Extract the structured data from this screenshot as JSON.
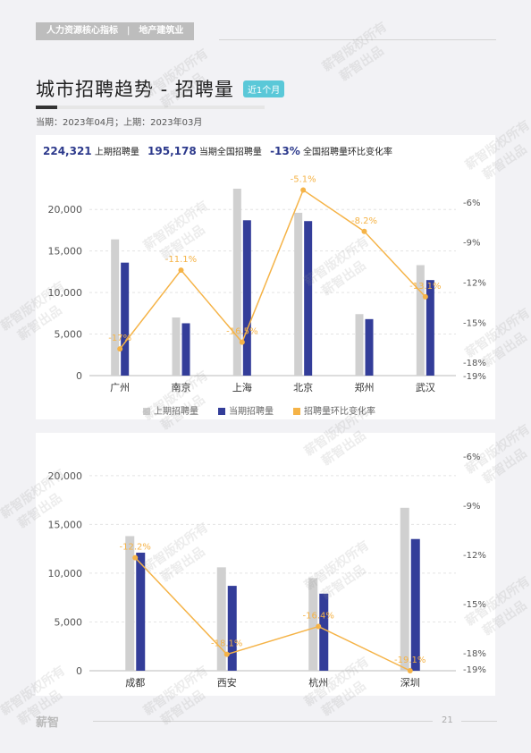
{
  "header": {
    "crumb_left": "人力资源核心指标",
    "crumb_sep": "|",
    "crumb_right": "地产建筑业"
  },
  "title": {
    "text": "城市招聘趋势 - 招聘量",
    "tag": "近1个月",
    "subtitle": "当期：2023年04月；上期：2023年03月"
  },
  "stats": {
    "prev_value": "224,321",
    "prev_label": "上期招聘量",
    "curr_value": "195,178",
    "curr_label": "当期全国招聘量",
    "change_value": "-13%",
    "change_label": "全国招聘量环比变化率"
  },
  "legend": {
    "prev": "上期招聘量",
    "curr": "当期招聘量",
    "rate": "招聘量环比变化率"
  },
  "colors": {
    "prev_bar": "#d0d0d0",
    "curr_bar": "#333d99",
    "rate_line": "#f5b347",
    "tag_bg": "#5ac8d8"
  },
  "chart_data": [
    {
      "type": "bar",
      "categories": [
        "广州",
        "南京",
        "上海",
        "北京",
        "郑州",
        "武汉"
      ],
      "series": [
        {
          "name": "上期招聘量",
          "values": [
            16400,
            7000,
            22500,
            19600,
            7400,
            13300
          ]
        },
        {
          "name": "当期招聘量",
          "values": [
            13600,
            6300,
            18700,
            18600,
            6800,
            11500
          ]
        },
        {
          "name": "招聘量环比变化率",
          "axis": "right",
          "values": [
            -17.0,
            -11.1,
            -16.5,
            -5.1,
            -8.2,
            -13.1
          ],
          "labels": [
            "-17%",
            "-11.1%",
            "-16.5%",
            "-5.1%",
            "-8.2%",
            "-13.1%"
          ]
        }
      ],
      "ylim": [
        0,
        22500
      ],
      "yticks": [
        "0",
        "5,000",
        "10,000",
        "15,000",
        "20,000"
      ],
      "y2lim": [
        -19,
        -5
      ],
      "y2ticks": [
        "-6%",
        "-9%",
        "-12%",
        "-15%",
        "-18%",
        "-19%"
      ],
      "grid": true,
      "legend_position": "bottom"
    },
    {
      "type": "bar",
      "categories": [
        "成都",
        "西安",
        "杭州",
        "深圳"
      ],
      "series": [
        {
          "name": "上期招聘量",
          "values": [
            13800,
            10600,
            9500,
            16700
          ]
        },
        {
          "name": "当期招聘量",
          "values": [
            12100,
            8700,
            7900,
            13500
          ]
        },
        {
          "name": "招聘量环比变化率",
          "axis": "right",
          "values": [
            -12.2,
            -18.1,
            -16.4,
            -19.1
          ],
          "labels": [
            "-12.2%",
            "-18.1%",
            "-16.4%",
            "-19.1%"
          ]
        }
      ],
      "ylim": [
        0,
        22000
      ],
      "yticks": [
        "0",
        "5,000",
        "10,000",
        "15,000",
        "20,000"
      ],
      "y2lim": [
        -19.1,
        -6
      ],
      "y2ticks": [
        "-6%",
        "-9%",
        "-12%",
        "-15%",
        "-18%",
        "-19%"
      ],
      "grid": true
    }
  ],
  "footer": {
    "logo": "薪智",
    "page": "21"
  },
  "watermark": {
    "line1": "薪智版权所有",
    "line2": "薪智出品"
  }
}
